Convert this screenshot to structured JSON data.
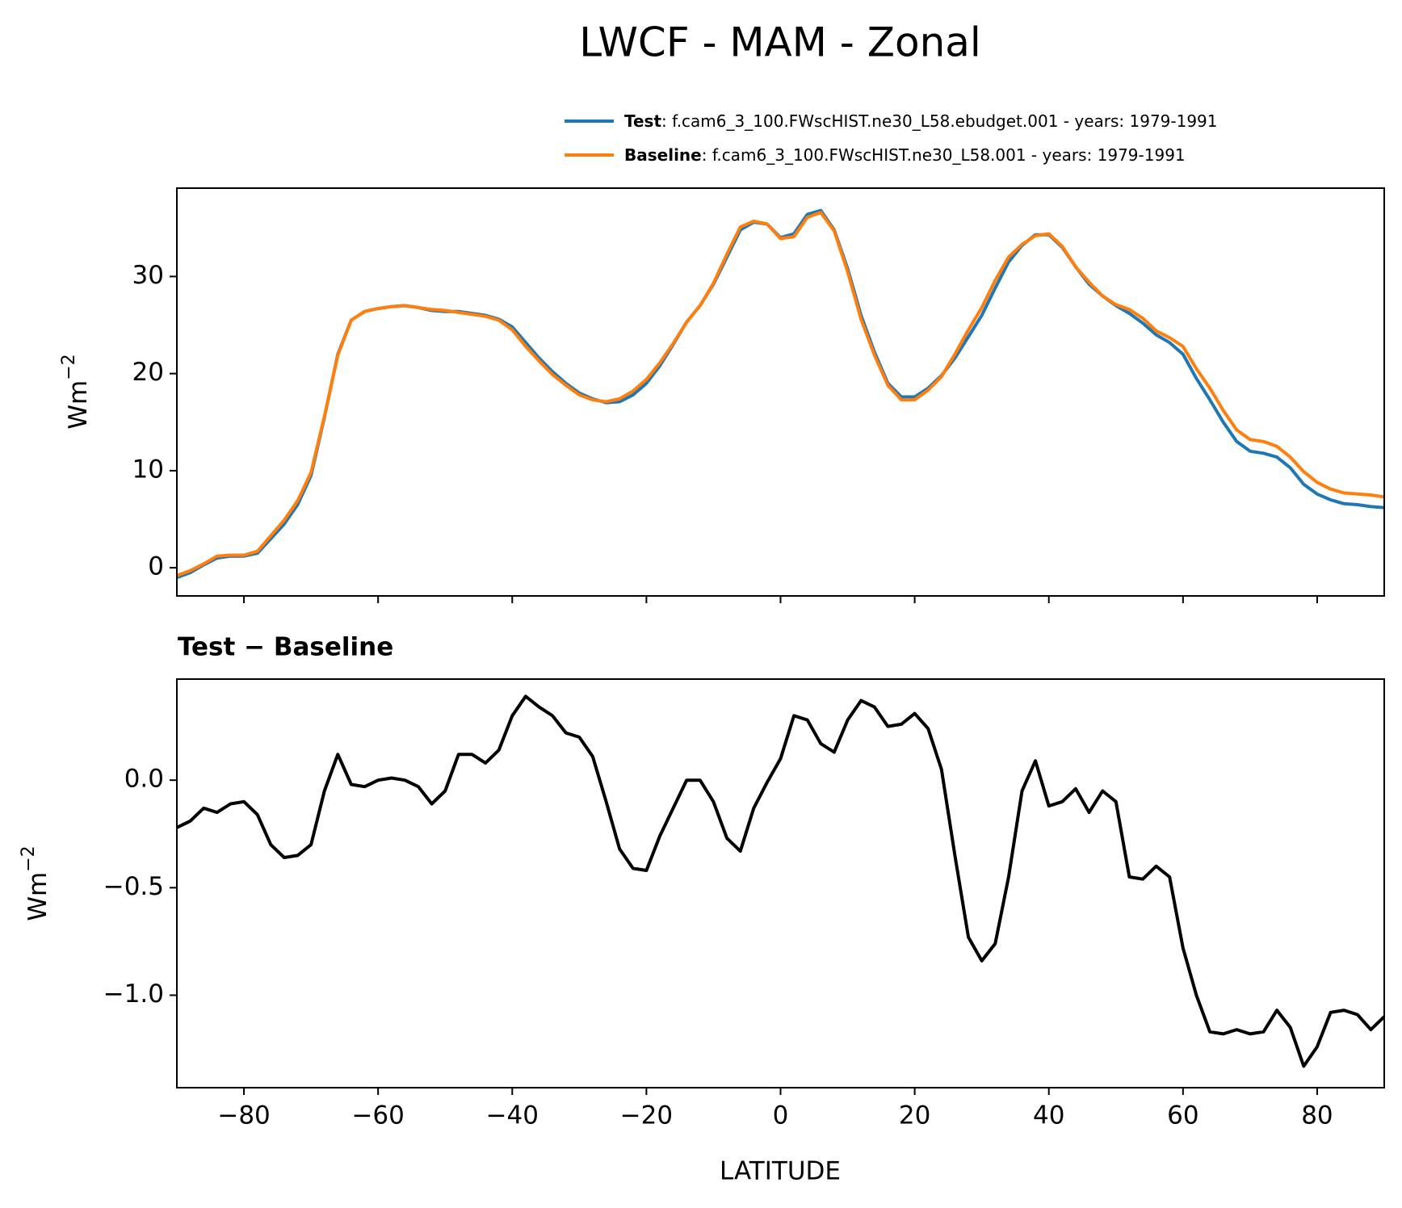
{
  "chart_data": [
    {
      "type": "line",
      "title": "LWCF - MAM - Zonal",
      "ylabel": "Wm",
      "ylabel_exponent": "−2",
      "xlim": [
        -90,
        90
      ],
      "ylim": [
        -2.9,
        39.1
      ],
      "yticks": [
        0,
        10,
        20,
        30
      ],
      "x": [
        -90,
        -88,
        -86,
        -84,
        -82,
        -80,
        -78,
        -76,
        -74,
        -72,
        -70,
        -68,
        -66,
        -64,
        -62,
        -60,
        -58,
        -56,
        -54,
        -52,
        -50,
        -48,
        -46,
        -44,
        -42,
        -40,
        -38,
        -36,
        -34,
        -32,
        -30,
        -28,
        -26,
        -24,
        -22,
        -20,
        -18,
        -16,
        -14,
        -12,
        -10,
        -8,
        -6,
        -4,
        -2,
        0,
        2,
        4,
        6,
        8,
        10,
        12,
        14,
        16,
        18,
        20,
        22,
        24,
        26,
        28,
        30,
        32,
        34,
        36,
        38,
        40,
        42,
        44,
        46,
        48,
        50,
        52,
        54,
        56,
        58,
        60,
        62,
        64,
        66,
        68,
        70,
        72,
        74,
        76,
        78,
        80,
        82,
        84,
        86,
        88,
        90
      ],
      "series": [
        {
          "name": "Test",
          "legend_text": ": f.cam6_3_100.FWscHIST.ne30_L58.ebudget.001 - years: 1979-1991",
          "color": "#1f77b4",
          "values": [
            -1.0,
            -0.5,
            0.3,
            1.0,
            1.2,
            1.2,
            1.5,
            3.0,
            4.5,
            6.5,
            9.5,
            15.5,
            22,
            25.5,
            26.4,
            26.7,
            26.9,
            27.0,
            26.8,
            26.5,
            26.4,
            26.4,
            26.2,
            26.0,
            25.6,
            24.8,
            23.2,
            21.6,
            20.2,
            19.0,
            18.0,
            17.4,
            17.0,
            17.1,
            17.8,
            19.0,
            20.8,
            23.0,
            25.3,
            27.0,
            29.2,
            32.0,
            34.8,
            35.6,
            35.4,
            34.0,
            34.4,
            36.4,
            36.8,
            34.8,
            30.8,
            26.0,
            22.2,
            19.0,
            17.6,
            17.6,
            18.5,
            19.8,
            21.6,
            23.8,
            26.0,
            28.8,
            31.5,
            33.2,
            34.3,
            34.3,
            33.0,
            31.0,
            29.2,
            28.0,
            27.0,
            26.2,
            25.2,
            24.0,
            23.2,
            22.0,
            19.5,
            17.3,
            15.0,
            13.0,
            12.0,
            11.8,
            11.4,
            10.3,
            8.6,
            7.6,
            7.0,
            6.6,
            6.5,
            6.3,
            6.2
          ]
        },
        {
          "name": "Baseline",
          "legend_text": ": f.cam6_3_100.FWscHIST.ne30_L58.001 - years: 1979-1991",
          "color": "#ff7f0e",
          "values": [
            -0.8,
            -0.3,
            0.4,
            1.2,
            1.3,
            1.3,
            1.7,
            3.3,
            4.9,
            6.9,
            9.8,
            15.6,
            21.9,
            25.5,
            26.4,
            26.7,
            26.9,
            27.0,
            26.8,
            26.6,
            26.5,
            26.3,
            26.1,
            25.9,
            25.5,
            24.5,
            22.8,
            21.3,
            19.9,
            18.8,
            17.8,
            17.3,
            17.1,
            17.4,
            18.2,
            19.4,
            21.1,
            23.1,
            25.3,
            27.0,
            29.3,
            32.3,
            35.1,
            35.7,
            35.4,
            33.9,
            34.1,
            36.1,
            36.6,
            34.7,
            30.5,
            25.6,
            21.9,
            18.8,
            17.3,
            17.3,
            18.3,
            19.7,
            22.0,
            24.5,
            26.8,
            29.6,
            32.0,
            33.3,
            34.2,
            34.4,
            33.1,
            31.0,
            29.4,
            28.0,
            27.1,
            26.6,
            25.7,
            24.4,
            23.7,
            22.8,
            20.5,
            18.5,
            16.2,
            14.2,
            13.2,
            13.0,
            12.5,
            11.4,
            9.9,
            8.8,
            8.1,
            7.7,
            7.6,
            7.5,
            7.3
          ]
        }
      ]
    },
    {
      "type": "line",
      "title": "Test − Baseline",
      "xlabel": "LATITUDE",
      "ylabel": "Wm",
      "ylabel_exponent": "−2",
      "xlim": [
        -90,
        90
      ],
      "ylim": [
        -1.43,
        0.47
      ],
      "xticks": [
        {
          "value": -80,
          "label": "−80"
        },
        {
          "value": -60,
          "label": "−60"
        },
        {
          "value": -40,
          "label": "−40"
        },
        {
          "value": -20,
          "label": "−20"
        },
        0,
        20,
        40,
        60,
        80
      ],
      "yticks": [
        {
          "value": 0,
          "label": "0.0"
        },
        {
          "value": -0.5,
          "label": "−0.5"
        },
        {
          "value": -1,
          "label": "−1.0"
        }
      ],
      "x": [
        -90,
        -88,
        -86,
        -84,
        -82,
        -80,
        -78,
        -76,
        -74,
        -72,
        -70,
        -68,
        -66,
        -64,
        -62,
        -60,
        -58,
        -56,
        -54,
        -52,
        -50,
        -48,
        -46,
        -44,
        -42,
        -40,
        -38,
        -36,
        -34,
        -32,
        -30,
        -28,
        -26,
        -24,
        -22,
        -20,
        -18,
        -16,
        -14,
        -12,
        -10,
        -8,
        -6,
        -4,
        -2,
        0,
        2,
        4,
        6,
        8,
        10,
        12,
        14,
        16,
        18,
        20,
        22,
        24,
        26,
        28,
        30,
        32,
        34,
        36,
        38,
        40,
        42,
        44,
        46,
        48,
        50,
        52,
        54,
        56,
        58,
        60,
        62,
        64,
        66,
        68,
        70,
        72,
        74,
        76,
        78,
        80,
        82,
        84,
        86,
        88,
        90
      ],
      "series": [
        {
          "color": "#000000",
          "values": [
            -0.22,
            -0.19,
            -0.13,
            -0.15,
            -0.11,
            -0.1,
            -0.16,
            -0.3,
            -0.36,
            -0.35,
            -0.3,
            -0.05,
            0.12,
            -0.02,
            -0.03,
            0.0,
            0.01,
            0.0,
            -0.03,
            -0.11,
            -0.05,
            0.12,
            0.12,
            0.08,
            0.14,
            0.3,
            0.39,
            0.34,
            0.3,
            0.22,
            0.2,
            0.11,
            -0.1,
            -0.32,
            -0.41,
            -0.42,
            -0.26,
            -0.13,
            0.0,
            0.0,
            -0.1,
            -0.27,
            -0.33,
            -0.13,
            -0.01,
            0.1,
            0.3,
            0.28,
            0.17,
            0.13,
            0.28,
            0.37,
            0.34,
            0.25,
            0.26,
            0.31,
            0.24,
            0.05,
            -0.35,
            -0.73,
            -0.84,
            -0.76,
            -0.45,
            -0.05,
            0.09,
            -0.12,
            -0.1,
            -0.04,
            -0.15,
            -0.05,
            -0.1,
            -0.45,
            -0.46,
            -0.4,
            -0.45,
            -0.78,
            -1.0,
            -1.17,
            -1.18,
            -1.16,
            -1.18,
            -1.17,
            -1.07,
            -1.15,
            -1.33,
            -1.24,
            -1.08,
            -1.07,
            -1.09,
            -1.16,
            -1.1
          ]
        }
      ]
    }
  ]
}
